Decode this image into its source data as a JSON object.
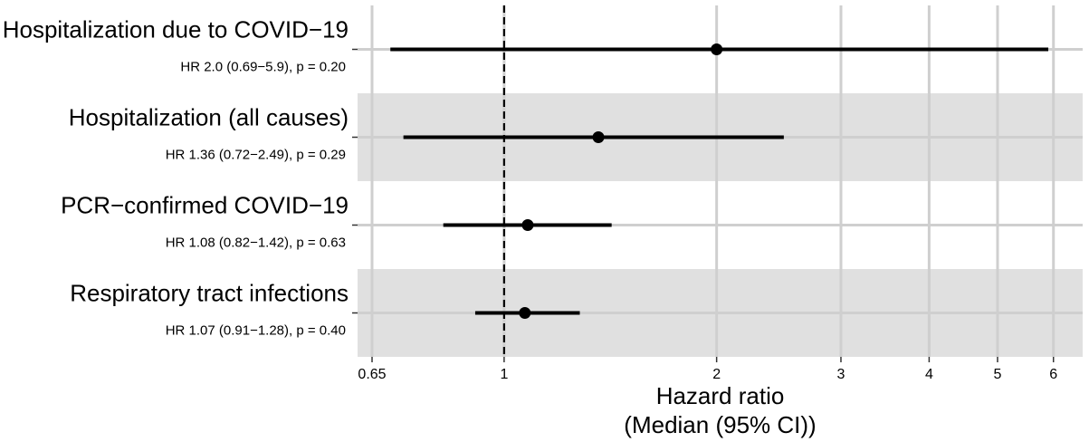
{
  "chart_data": {
    "type": "forest",
    "xscale": "log",
    "xlim": [
      0.62,
      6.6
    ],
    "xticks": [
      0.65,
      1,
      2,
      3,
      4,
      5,
      6
    ],
    "tick_labels": [
      "0.65",
      "1",
      "2",
      "3",
      "4",
      "5",
      "6"
    ],
    "reference_line": 1,
    "xlabel_line1": "Hazard ratio",
    "xlabel_line2": "(Median (95% CI))",
    "rows": [
      {
        "label": "Hospitalization due to COVID−19",
        "summary": "HR 2.0 (0.69−5.9), p = 0.20",
        "hr": 2.0,
        "lower": 0.69,
        "upper": 5.9,
        "shaded": false
      },
      {
        "label": "Hospitalization (all causes)",
        "summary": "HR 1.36 (0.72−2.49), p = 0.29",
        "hr": 1.36,
        "lower": 0.72,
        "upper": 2.49,
        "shaded": true
      },
      {
        "label": "PCR−confirmed COVID−19",
        "summary": "HR 1.08 (0.82−1.42), p = 0.63",
        "hr": 1.08,
        "lower": 0.82,
        "upper": 1.42,
        "shaded": false
      },
      {
        "label": "Respiratory tract infections",
        "summary": "HR 1.07 (0.91−1.28), p = 0.40",
        "hr": 1.07,
        "lower": 0.91,
        "upper": 1.28,
        "shaded": true
      }
    ],
    "grid": true,
    "colors": {
      "panel": "#ffffff",
      "band": "#e0e0e0",
      "grid": "#cfcfcf",
      "marks": "#000000"
    }
  }
}
